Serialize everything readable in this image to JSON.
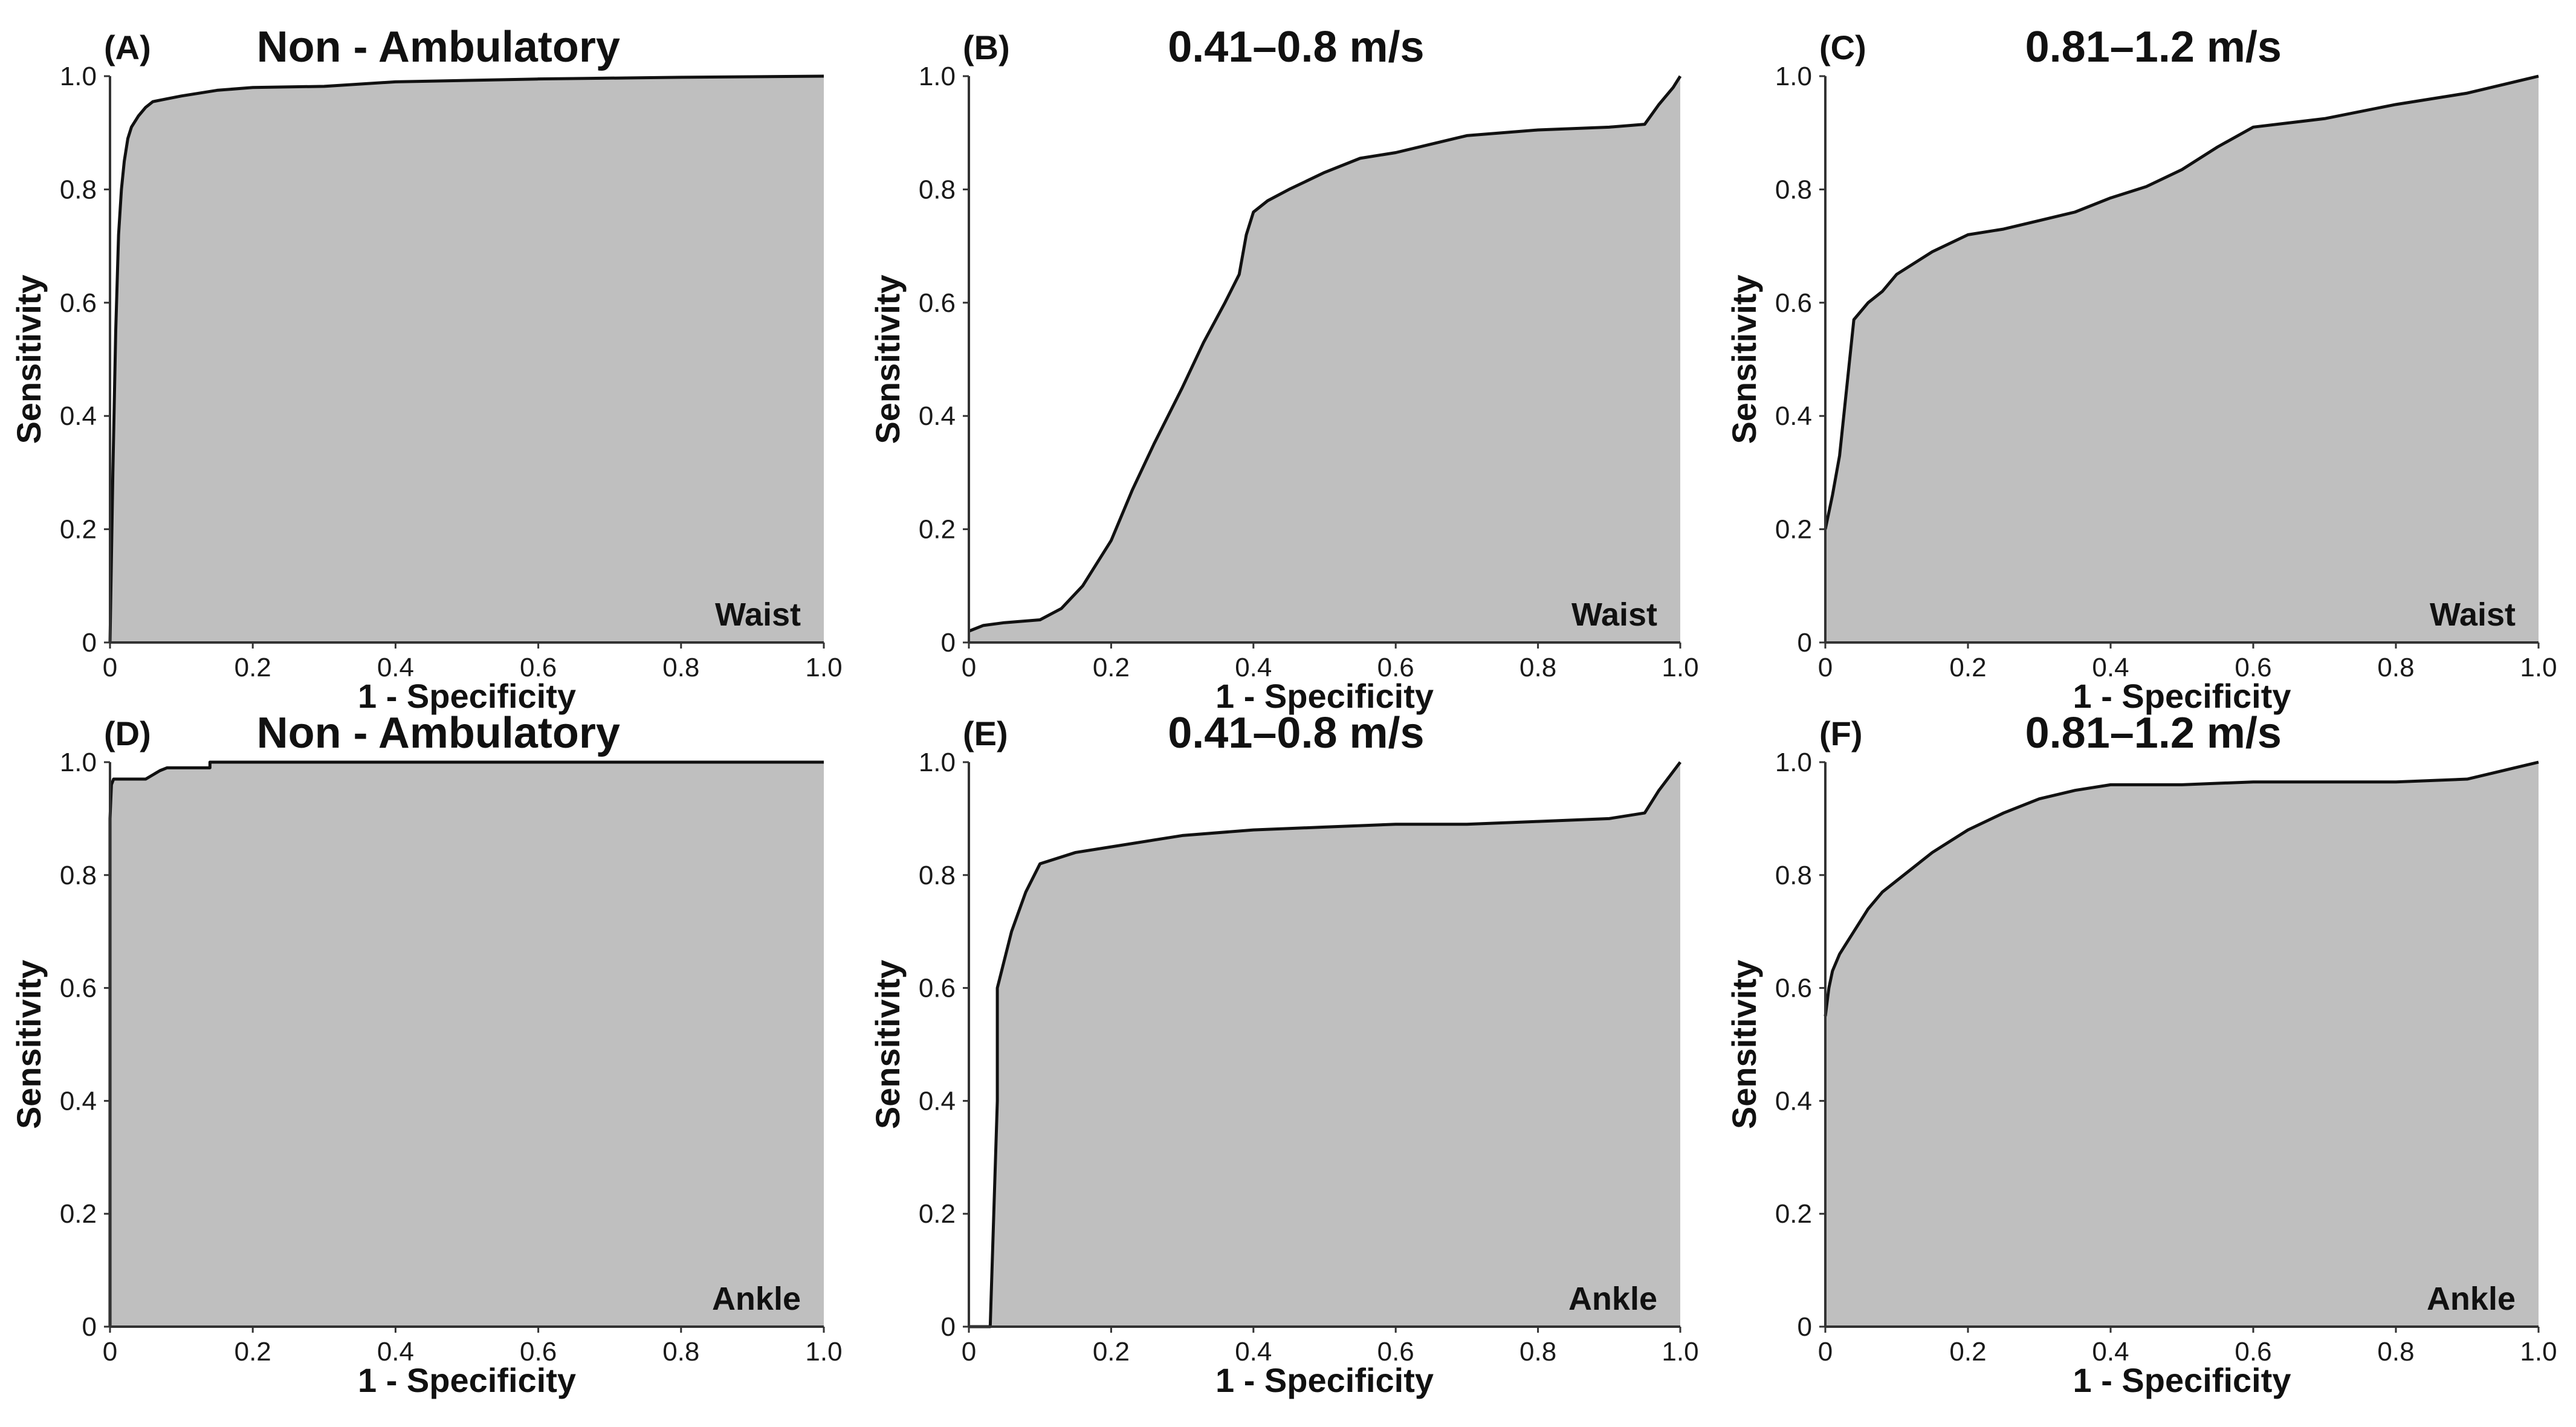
{
  "chart_data": [
    {
      "id": "A",
      "type": "area",
      "panel_label": "(A)",
      "title": "Non - Ambulatory",
      "location_label": "Waist",
      "xlabel": "1 - Specificity",
      "ylabel": "Sensitivity",
      "xlim": [
        0,
        1
      ],
      "ylim": [
        0,
        1
      ],
      "xticks": [
        "0",
        "0.2",
        "0.4",
        "0.6",
        "0.8",
        "1.0"
      ],
      "yticks": [
        "0",
        "0.2",
        "0.4",
        "0.6",
        "0.8",
        "1.0"
      ],
      "fill_color": "#bfbfbf",
      "line_color": "#111111",
      "x": [
        0,
        0.004,
        0.008,
        0.012,
        0.016,
        0.02,
        0.025,
        0.03,
        0.04,
        0.05,
        0.06,
        0.08,
        0.1,
        0.15,
        0.2,
        0.3,
        0.4,
        0.6,
        0.8,
        1.0
      ],
      "y": [
        0,
        0.3,
        0.55,
        0.72,
        0.8,
        0.85,
        0.89,
        0.91,
        0.93,
        0.945,
        0.955,
        0.96,
        0.965,
        0.975,
        0.98,
        0.982,
        0.99,
        0.995,
        0.998,
        1.0
      ]
    },
    {
      "id": "B",
      "type": "area",
      "panel_label": "(B)",
      "title": "0.41–0.8 m/s",
      "location_label": "Waist",
      "xlabel": "1 - Specificity",
      "ylabel": "Sensitivity",
      "xlim": [
        0,
        1
      ],
      "ylim": [
        0,
        1
      ],
      "xticks": [
        "0",
        "0.2",
        "0.4",
        "0.6",
        "0.8",
        "1.0"
      ],
      "yticks": [
        "0",
        "0.2",
        "0.4",
        "0.6",
        "0.8",
        "1.0"
      ],
      "fill_color": "#bfbfbf",
      "line_color": "#111111",
      "x": [
        0,
        0.02,
        0.05,
        0.1,
        0.13,
        0.16,
        0.2,
        0.23,
        0.26,
        0.3,
        0.33,
        0.36,
        0.38,
        0.39,
        0.4,
        0.42,
        0.45,
        0.5,
        0.55,
        0.6,
        0.65,
        0.7,
        0.8,
        0.9,
        0.95,
        0.97,
        0.99,
        1.0
      ],
      "y": [
        0.02,
        0.03,
        0.035,
        0.04,
        0.06,
        0.1,
        0.18,
        0.27,
        0.35,
        0.45,
        0.53,
        0.6,
        0.65,
        0.72,
        0.76,
        0.78,
        0.8,
        0.83,
        0.855,
        0.865,
        0.88,
        0.895,
        0.905,
        0.91,
        0.915,
        0.95,
        0.98,
        1.0
      ]
    },
    {
      "id": "C",
      "type": "area",
      "panel_label": "(C)",
      "title": "0.81–1.2 m/s",
      "location_label": "Waist",
      "xlabel": "1 - Specificity",
      "ylabel": "Sensitivity",
      "xlim": [
        0,
        1
      ],
      "ylim": [
        0,
        1
      ],
      "xticks": [
        "0",
        "0.2",
        "0.4",
        "0.6",
        "0.8",
        "1.0"
      ],
      "yticks": [
        "0",
        "0.2",
        "0.4",
        "0.6",
        "0.8",
        "1.0"
      ],
      "fill_color": "#bfbfbf",
      "line_color": "#111111",
      "x": [
        0,
        0.01,
        0.02,
        0.03,
        0.04,
        0.06,
        0.08,
        0.1,
        0.15,
        0.2,
        0.25,
        0.3,
        0.35,
        0.4,
        0.45,
        0.5,
        0.55,
        0.6,
        0.7,
        0.8,
        0.9,
        0.95,
        1.0
      ],
      "y": [
        0.2,
        0.26,
        0.33,
        0.45,
        0.57,
        0.6,
        0.62,
        0.65,
        0.69,
        0.72,
        0.73,
        0.745,
        0.76,
        0.785,
        0.805,
        0.835,
        0.875,
        0.91,
        0.925,
        0.95,
        0.97,
        0.985,
        1.0
      ]
    },
    {
      "id": "D",
      "type": "area",
      "panel_label": "(D)",
      "title": "Non - Ambulatory",
      "location_label": "Ankle",
      "xlabel": "1 - Specificity",
      "ylabel": "Sensitivity",
      "xlim": [
        0,
        1
      ],
      "ylim": [
        0,
        1
      ],
      "xticks": [
        "0",
        "0.2",
        "0.4",
        "0.6",
        "0.8",
        "1.0"
      ],
      "yticks": [
        "0",
        "0.2",
        "0.4",
        "0.6",
        "0.8",
        "1.0"
      ],
      "fill_color": "#bfbfbf",
      "line_color": "#111111",
      "x": [
        0,
        0,
        0.002,
        0.005,
        0.02,
        0.05,
        0.07,
        0.08,
        0.14,
        0.14,
        1.0
      ],
      "y": [
        0,
        0.9,
        0.96,
        0.97,
        0.97,
        0.97,
        0.985,
        0.99,
        0.99,
        1.0,
        1.0
      ]
    },
    {
      "id": "E",
      "type": "area",
      "panel_label": "(E)",
      "title": "0.41–0.8 m/s",
      "location_label": "Ankle",
      "xlabel": "1 - Specificity",
      "ylabel": "Sensitivity",
      "xlim": [
        0,
        1
      ],
      "ylim": [
        0,
        1
      ],
      "xticks": [
        "0",
        "0.2",
        "0.4",
        "0.6",
        "0.8",
        "1.0"
      ],
      "yticks": [
        "0",
        "0.2",
        "0.4",
        "0.6",
        "0.8",
        "1.0"
      ],
      "fill_color": "#bfbfbf",
      "line_color": "#111111",
      "x": [
        0,
        0.03,
        0.035,
        0.04,
        0.04,
        0.05,
        0.06,
        0.08,
        0.1,
        0.15,
        0.2,
        0.3,
        0.4,
        0.5,
        0.6,
        0.7,
        0.8,
        0.9,
        0.95,
        0.97,
        1.0
      ],
      "y": [
        0,
        0,
        0.2,
        0.4,
        0.6,
        0.65,
        0.7,
        0.77,
        0.82,
        0.84,
        0.85,
        0.87,
        0.88,
        0.885,
        0.89,
        0.89,
        0.895,
        0.9,
        0.91,
        0.95,
        1.0
      ]
    },
    {
      "id": "F",
      "type": "area",
      "panel_label": "(F)",
      "title": "0.81–1.2 m/s",
      "location_label": "Ankle",
      "xlabel": "1 - Specificity",
      "ylabel": "Sensitivity",
      "xlim": [
        0,
        1
      ],
      "ylim": [
        0,
        1
      ],
      "xticks": [
        "0",
        "0.2",
        "0.4",
        "0.6",
        "0.8",
        "1.0"
      ],
      "yticks": [
        "0",
        "0.2",
        "0.4",
        "0.6",
        "0.8",
        "1.0"
      ],
      "fill_color": "#bfbfbf",
      "line_color": "#111111",
      "x": [
        0,
        0.005,
        0.01,
        0.02,
        0.04,
        0.06,
        0.08,
        0.1,
        0.15,
        0.2,
        0.25,
        0.3,
        0.35,
        0.4,
        0.5,
        0.6,
        0.7,
        0.8,
        0.9,
        0.95,
        1.0
      ],
      "y": [
        0.55,
        0.6,
        0.63,
        0.66,
        0.7,
        0.74,
        0.77,
        0.79,
        0.84,
        0.88,
        0.91,
        0.935,
        0.95,
        0.96,
        0.96,
        0.965,
        0.965,
        0.965,
        0.97,
        0.985,
        1.0
      ]
    }
  ]
}
